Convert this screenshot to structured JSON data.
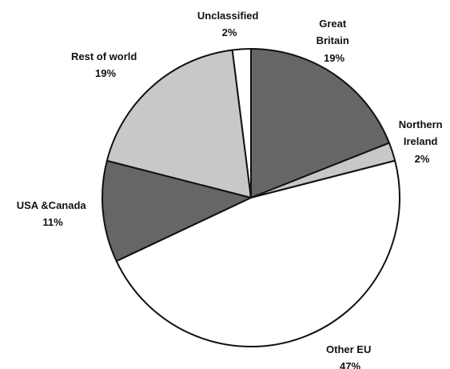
{
  "chart_data": {
    "type": "pie",
    "start": "top",
    "direction": "clockwise",
    "slices": [
      {
        "key": "gb",
        "label_lines": [
          "Great",
          "Britain"
        ],
        "pct_label": "19%",
        "value": 19,
        "color": "#666666"
      },
      {
        "key": "ni",
        "label_lines": [
          "Northern",
          "Ireland"
        ],
        "pct_label": "2%",
        "value": 2,
        "color": "#c8c8c8"
      },
      {
        "key": "eu",
        "label_lines": [
          "Other EU"
        ],
        "pct_label": "47%",
        "value": 47,
        "color": "#ffffff"
      },
      {
        "key": "usa",
        "label_lines": [
          "USA &Canada"
        ],
        "pct_label": "11%",
        "value": 11,
        "color": "#666666"
      },
      {
        "key": "row",
        "label_lines": [
          "Rest of world"
        ],
        "pct_label": "19%",
        "value": 19,
        "color": "#c8c8c8"
      },
      {
        "key": "unc",
        "label_lines": [
          "Unclassified"
        ],
        "pct_label": "2%",
        "value": 2,
        "color": "#ffffff"
      }
    ]
  }
}
